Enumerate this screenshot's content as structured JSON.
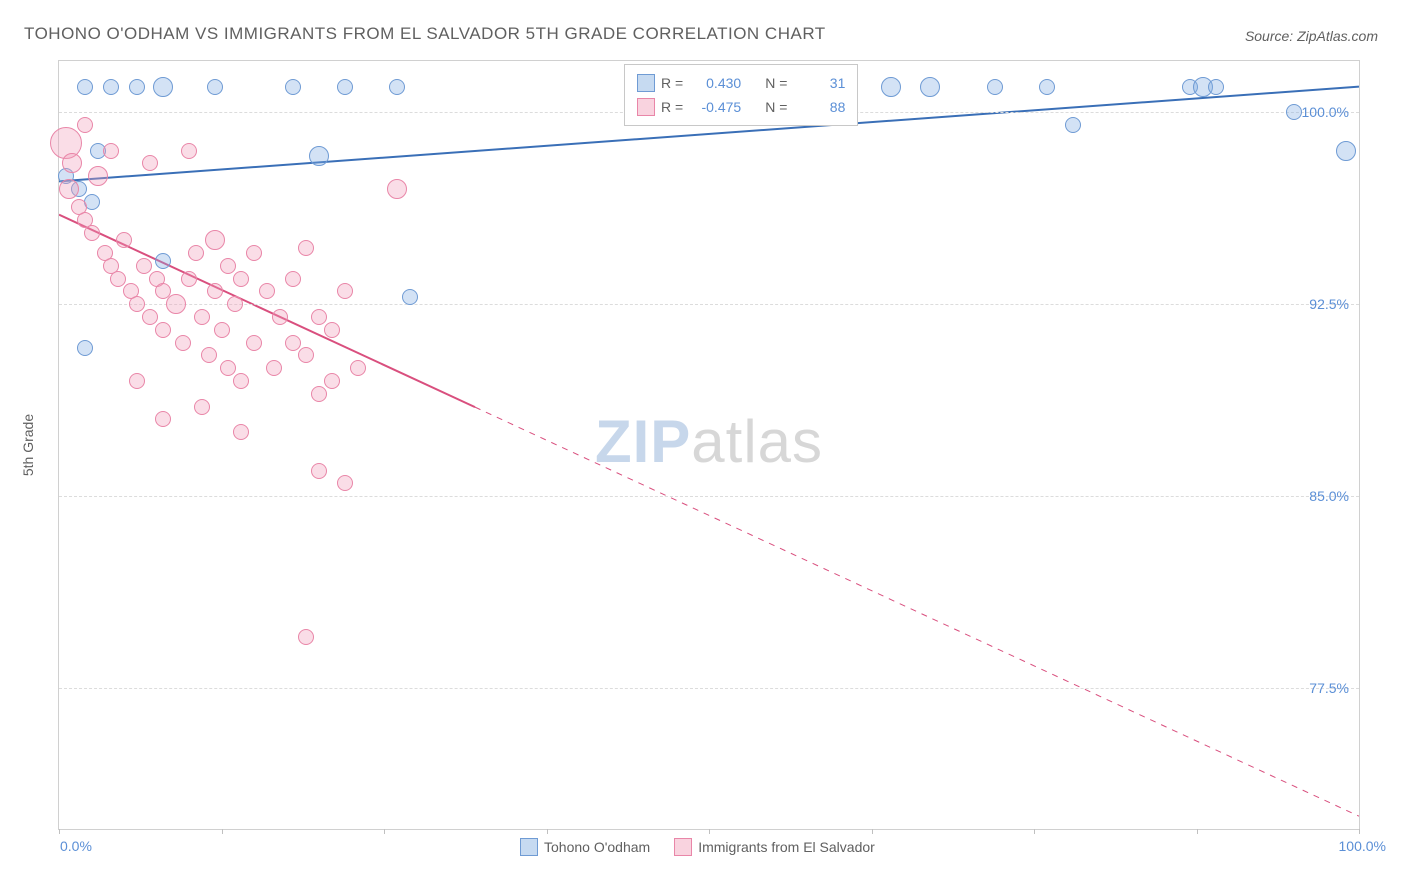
{
  "title": "TOHONO O'ODHAM VS IMMIGRANTS FROM EL SALVADOR 5TH GRADE CORRELATION CHART",
  "source_label": "Source: ZipAtlas.com",
  "ylabel": "5th Grade",
  "watermark_a": "ZIP",
  "watermark_b": "atlas",
  "chart": {
    "type": "scatter",
    "xlim": [
      0,
      100
    ],
    "ylim": [
      72,
      102
    ],
    "xtick_min_label": "0.0%",
    "xtick_max_label": "100.0%",
    "xtick_positions": [
      0,
      12.5,
      25,
      37.5,
      50,
      62.5,
      75,
      87.5,
      100
    ],
    "yticks": [
      {
        "v": 100.0,
        "label": "100.0%"
      },
      {
        "v": 92.5,
        "label": "92.5%"
      },
      {
        "v": 85.0,
        "label": "85.0%"
      },
      {
        "v": 77.5,
        "label": "77.5%"
      }
    ],
    "background_color": "#ffffff",
    "grid_color": "#dcdcdc",
    "series": [
      {
        "name": "Tohono O'odham",
        "color_fill": "rgba(128,172,225,0.35)",
        "color_stroke": "#6f9bd4",
        "stats": {
          "R": "0.430",
          "N": "31"
        },
        "trend": {
          "x1": 0,
          "y1": 97.3,
          "x2": 100,
          "y2": 101.0,
          "solid_until_x": 100,
          "stroke": "#3a6fb7",
          "width": 2
        },
        "points": [
          {
            "x": 2,
            "y": 101,
            "r": 8
          },
          {
            "x": 4,
            "y": 101,
            "r": 8
          },
          {
            "x": 6,
            "y": 101,
            "r": 8
          },
          {
            "x": 8,
            "y": 101,
            "r": 10
          },
          {
            "x": 12,
            "y": 101,
            "r": 8
          },
          {
            "x": 18,
            "y": 101,
            "r": 8
          },
          {
            "x": 22,
            "y": 101,
            "r": 8
          },
          {
            "x": 26,
            "y": 101,
            "r": 8
          },
          {
            "x": 64,
            "y": 101,
            "r": 10
          },
          {
            "x": 67,
            "y": 101,
            "r": 10
          },
          {
            "x": 72,
            "y": 101,
            "r": 8
          },
          {
            "x": 76,
            "y": 101,
            "r": 8
          },
          {
            "x": 87,
            "y": 101,
            "r": 8
          },
          {
            "x": 88,
            "y": 101,
            "r": 10
          },
          {
            "x": 89,
            "y": 101,
            "r": 8
          },
          {
            "x": 95,
            "y": 100,
            "r": 8
          },
          {
            "x": 99,
            "y": 98.5,
            "r": 10
          },
          {
            "x": 3,
            "y": 98.5,
            "r": 8
          },
          {
            "x": 20,
            "y": 98.3,
            "r": 10
          },
          {
            "x": 0.5,
            "y": 97.5,
            "r": 8
          },
          {
            "x": 1.5,
            "y": 97.0,
            "r": 8
          },
          {
            "x": 2.5,
            "y": 96.5,
            "r": 8
          },
          {
            "x": 8,
            "y": 94.2,
            "r": 8
          },
          {
            "x": 27,
            "y": 92.8,
            "r": 8
          },
          {
            "x": 2,
            "y": 90.8,
            "r": 8
          },
          {
            "x": 78,
            "y": 99.5,
            "r": 8
          }
        ]
      },
      {
        "name": "Immigrants from El Salvador",
        "color_fill": "rgba(242,157,185,0.35)",
        "color_stroke": "#e986a8",
        "stats": {
          "R": "-0.475",
          "N": "88"
        },
        "trend": {
          "x1": 0,
          "y1": 96.0,
          "x2": 100,
          "y2": 72.5,
          "solid_until_x": 32,
          "stroke": "#d94f7e",
          "width": 2
        },
        "points": [
          {
            "x": 0.5,
            "y": 98.8,
            "r": 16
          },
          {
            "x": 1,
            "y": 98.0,
            "r": 10
          },
          {
            "x": 0.8,
            "y": 97.0,
            "r": 10
          },
          {
            "x": 1.5,
            "y": 96.3,
            "r": 8
          },
          {
            "x": 2,
            "y": 95.8,
            "r": 8
          },
          {
            "x": 2.5,
            "y": 95.3,
            "r": 8
          },
          {
            "x": 3,
            "y": 97.5,
            "r": 10
          },
          {
            "x": 3.5,
            "y": 94.5,
            "r": 8
          },
          {
            "x": 4,
            "y": 94.0,
            "r": 8
          },
          {
            "x": 4.5,
            "y": 93.5,
            "r": 8
          },
          {
            "x": 5,
            "y": 95.0,
            "r": 8
          },
          {
            "x": 5.5,
            "y": 93.0,
            "r": 8
          },
          {
            "x": 6,
            "y": 92.5,
            "r": 8
          },
          {
            "x": 6.5,
            "y": 94.0,
            "r": 8
          },
          {
            "x": 7,
            "y": 92.0,
            "r": 8
          },
          {
            "x": 7.5,
            "y": 93.5,
            "r": 8
          },
          {
            "x": 8,
            "y": 91.5,
            "r": 8
          },
          {
            "x": 8,
            "y": 93.0,
            "r": 8
          },
          {
            "x": 9,
            "y": 92.5,
            "r": 10
          },
          {
            "x": 9.5,
            "y": 91.0,
            "r": 8
          },
          {
            "x": 10,
            "y": 93.5,
            "r": 8
          },
          {
            "x": 10.5,
            "y": 94.5,
            "r": 8
          },
          {
            "x": 11,
            "y": 92.0,
            "r": 8
          },
          {
            "x": 11.5,
            "y": 90.5,
            "r": 8
          },
          {
            "x": 12,
            "y": 95.0,
            "r": 10
          },
          {
            "x": 12,
            "y": 93.0,
            "r": 8
          },
          {
            "x": 12.5,
            "y": 91.5,
            "r": 8
          },
          {
            "x": 13,
            "y": 90.0,
            "r": 8
          },
          {
            "x": 13,
            "y": 94.0,
            "r": 8
          },
          {
            "x": 13.5,
            "y": 92.5,
            "r": 8
          },
          {
            "x": 14,
            "y": 89.5,
            "r": 8
          },
          {
            "x": 14,
            "y": 93.5,
            "r": 8
          },
          {
            "x": 15,
            "y": 91.0,
            "r": 8
          },
          {
            "x": 15,
            "y": 94.5,
            "r": 8
          },
          {
            "x": 16,
            "y": 93.0,
            "r": 8
          },
          {
            "x": 16.5,
            "y": 90.0,
            "r": 8
          },
          {
            "x": 17,
            "y": 92.0,
            "r": 8
          },
          {
            "x": 18,
            "y": 91.0,
            "r": 8
          },
          {
            "x": 18,
            "y": 93.5,
            "r": 8
          },
          {
            "x": 19,
            "y": 90.5,
            "r": 8
          },
          {
            "x": 19,
            "y": 94.7,
            "r": 8
          },
          {
            "x": 20,
            "y": 92.0,
            "r": 8
          },
          {
            "x": 21,
            "y": 89.5,
            "r": 8
          },
          {
            "x": 21,
            "y": 91.5,
            "r": 8
          },
          {
            "x": 22,
            "y": 93.0,
            "r": 8
          },
          {
            "x": 23,
            "y": 90.0,
            "r": 8
          },
          {
            "x": 26,
            "y": 97.0,
            "r": 10
          },
          {
            "x": 8,
            "y": 88.0,
            "r": 8
          },
          {
            "x": 11,
            "y": 88.5,
            "r": 8
          },
          {
            "x": 14,
            "y": 87.5,
            "r": 8
          },
          {
            "x": 20,
            "y": 86.0,
            "r": 8
          },
          {
            "x": 22,
            "y": 85.5,
            "r": 8
          },
          {
            "x": 19,
            "y": 79.5,
            "r": 8
          },
          {
            "x": 6,
            "y": 89.5,
            "r": 8
          },
          {
            "x": 20,
            "y": 89.0,
            "r": 8
          },
          {
            "x": 2,
            "y": 99.5,
            "r": 8
          },
          {
            "x": 4,
            "y": 98.5,
            "r": 8
          },
          {
            "x": 7,
            "y": 98.0,
            "r": 8
          },
          {
            "x": 10,
            "y": 98.5,
            "r": 8
          }
        ]
      }
    ]
  },
  "legend_labels": {
    "R": "R =",
    "N": "N ="
  }
}
